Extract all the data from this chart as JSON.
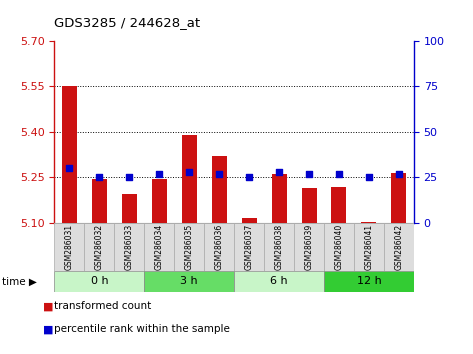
{
  "title": "GDS3285 / 244628_at",
  "samples": [
    "GSM286031",
    "GSM286032",
    "GSM286033",
    "GSM286034",
    "GSM286035",
    "GSM286036",
    "GSM286037",
    "GSM286038",
    "GSM286039",
    "GSM286040",
    "GSM286041",
    "GSM286042"
  ],
  "red_values": [
    5.55,
    5.245,
    5.195,
    5.245,
    5.39,
    5.32,
    5.115,
    5.26,
    5.215,
    5.22,
    5.105,
    5.265
  ],
  "blue_values": [
    30,
    25,
    25,
    27,
    28,
    27,
    25,
    28,
    27,
    27,
    25,
    27
  ],
  "groups": [
    {
      "label": "0 h",
      "start": 0,
      "end": 3,
      "color": "#c8f5c8"
    },
    {
      "label": "3 h",
      "start": 3,
      "end": 6,
      "color": "#66dd66"
    },
    {
      "label": "6 h",
      "start": 6,
      "end": 9,
      "color": "#c8f5c8"
    },
    {
      "label": "12 h",
      "start": 9,
      "end": 12,
      "color": "#33cc33"
    }
  ],
  "ylim_left": [
    5.1,
    5.7
  ],
  "ylim_right": [
    0,
    100
  ],
  "yticks_left": [
    5.1,
    5.25,
    5.4,
    5.55,
    5.7
  ],
  "yticks_right": [
    0,
    25,
    50,
    75,
    100
  ],
  "bar_color": "#cc1111",
  "dot_color": "#0000cc",
  "bar_width": 0.5,
  "dot_size": 25,
  "background_color": "#ffffff",
  "time_label": "time"
}
